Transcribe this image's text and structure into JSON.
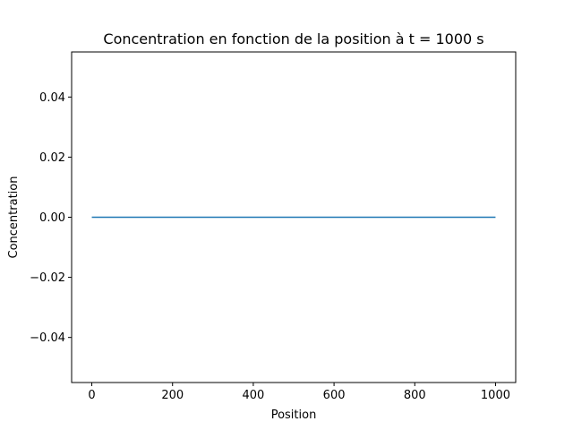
{
  "chart_data": {
    "type": "line",
    "title": "Concentration en fonction de la position à t = 1000 s",
    "xlabel": "Position",
    "ylabel": "Concentration",
    "xlim": [
      -50,
      1050
    ],
    "ylim": [
      -0.055,
      0.055
    ],
    "xticks": [
      0,
      200,
      400,
      600,
      800,
      1000
    ],
    "xtick_labels": [
      "0",
      "200",
      "400",
      "600",
      "800",
      "1000"
    ],
    "yticks": [
      -0.04,
      -0.02,
      0.0,
      0.02,
      0.04
    ],
    "ytick_labels": [
      "−0.04",
      "−0.02",
      "0.00",
      "0.02",
      "0.04"
    ],
    "grid": false,
    "series": [
      {
        "x": [
          0,
          1000
        ],
        "y": [
          0,
          0
        ],
        "color": "#1f77b4"
      }
    ]
  }
}
